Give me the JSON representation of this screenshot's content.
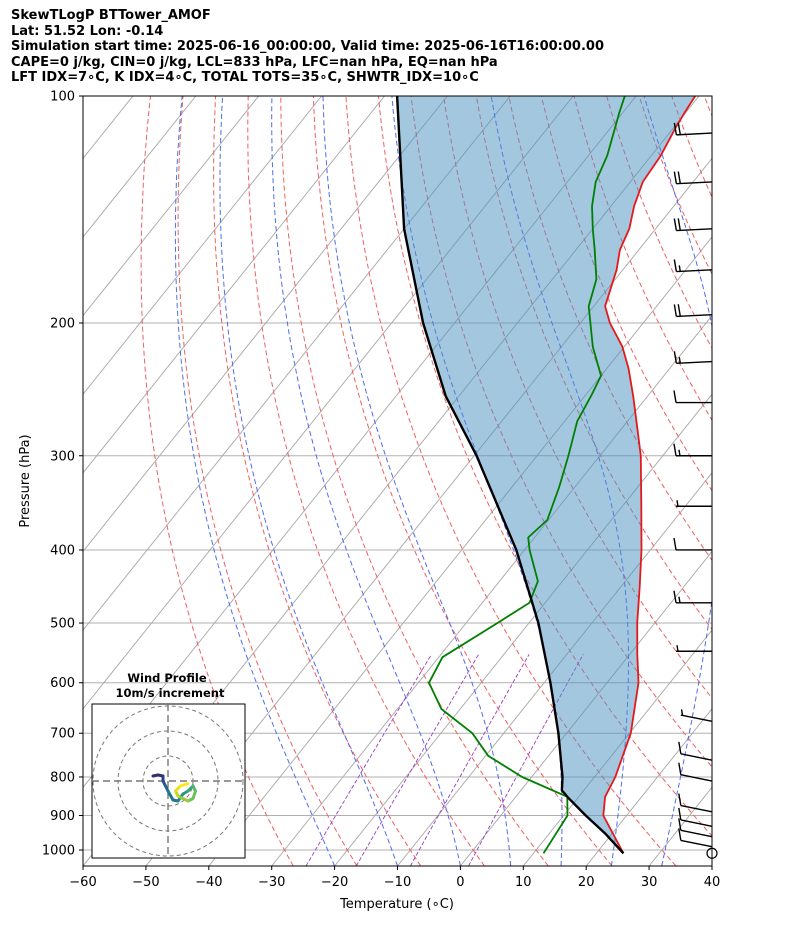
{
  "header": {
    "line1": "SkewTLogP BTTower_AMOF",
    "line2": "Lat: 51.52   Lon: -0.14",
    "line3": "Simulation start time: 2025-06-16_00:00:00, Valid time: 2025-06-16T16:00:00.00",
    "line4": "CAPE=0 j/kg, CIN=0 j/kg, LCL=833 hPa, LFC=nan hPa, EQ=nan hPa",
    "line5": "LFT IDX=7∘C, K IDX=4∘C, TOTAL TOTS=35∘C, SHWTR_IDX=10∘C"
  },
  "chart_data": {
    "type": "line",
    "subtype": "skew-t log-p",
    "xlabel": "Temperature (∘C)",
    "ylabel": "Pressure (hPa)",
    "xlim": [
      -60,
      40
    ],
    "ylim": [
      1050,
      100
    ],
    "y_scale": "log",
    "x_ticks": [
      "−60",
      "−50",
      "−40",
      "−30",
      "−20",
      "−10",
      "0",
      "10",
      "20",
      "30",
      "40"
    ],
    "y_ticks": [
      "100",
      "200",
      "300",
      "400",
      "500",
      "600",
      "700",
      "800",
      "900",
      "1000"
    ],
    "grid": true,
    "series": [
      {
        "role": "temperature",
        "color": "#e31a1c",
        "points": [
          [
            1010,
            24.3
          ],
          [
            900,
            16.3
          ],
          [
            850,
            14.2
          ],
          [
            800,
            13.3
          ],
          [
            700,
            10.2
          ],
          [
            600,
            5.0
          ],
          [
            550,
            1.2
          ],
          [
            500,
            -2.8
          ],
          [
            450,
            -6.8
          ],
          [
            400,
            -11.4
          ],
          [
            350,
            -17.0
          ],
          [
            300,
            -23.5
          ],
          [
            275,
            -27.7
          ],
          [
            250,
            -32.3
          ],
          [
            230,
            -36.5
          ],
          [
            215,
            -40.3
          ],
          [
            200,
            -45.3
          ],
          [
            190,
            -48.2
          ],
          [
            170,
            -51.0
          ],
          [
            160,
            -53.0
          ],
          [
            150,
            -54.2
          ],
          [
            140,
            -56.3
          ],
          [
            130,
            -58.0
          ],
          [
            120,
            -58.5
          ],
          [
            110,
            -59.7
          ],
          [
            105,
            -60.2
          ],
          [
            100,
            -60.6
          ]
        ]
      },
      {
        "role": "dewpoint",
        "color": "#008000",
        "points": [
          [
            1010,
            11.6
          ],
          [
            900,
            10.6
          ],
          [
            850,
            8.2
          ],
          [
            800,
            -1.5
          ],
          [
            750,
            -9.6
          ],
          [
            700,
            -15.0
          ],
          [
            650,
            -23.0
          ],
          [
            600,
            -28.3
          ],
          [
            555,
            -29.4
          ],
          [
            500,
            -25.0
          ],
          [
            470,
            -22.5
          ],
          [
            440,
            -23.9
          ],
          [
            400,
            -29.2
          ],
          [
            385,
            -31.0
          ],
          [
            365,
            -30.2
          ],
          [
            330,
            -32.5
          ],
          [
            300,
            -35.0
          ],
          [
            270,
            -38.0
          ],
          [
            250,
            -39.0
          ],
          [
            235,
            -40.0
          ],
          [
            215,
            -45.0
          ],
          [
            190,
            -50.8
          ],
          [
            175,
            -53.0
          ],
          [
            160,
            -57.0
          ],
          [
            150,
            -60.0
          ],
          [
            140,
            -63.0
          ],
          [
            130,
            -65.5
          ],
          [
            120,
            -67.0
          ],
          [
            105,
            -70.6
          ],
          [
            100,
            -71.8
          ]
        ]
      },
      {
        "role": "parcel profile",
        "color": "#000000",
        "points": [
          [
            1010,
            24.3
          ],
          [
            950,
            18.8
          ],
          [
            900,
            13.5
          ],
          [
            850,
            8.2
          ],
          [
            833,
            6.5
          ],
          [
            800,
            4.9
          ],
          [
            700,
            -1.3
          ],
          [
            600,
            -9.0
          ],
          [
            500,
            -18.5
          ],
          [
            400,
            -31.3
          ],
          [
            300,
            -49.6
          ],
          [
            250,
            -62.1
          ],
          [
            200,
            -75.0
          ],
          [
            150,
            -90.0
          ],
          [
            100,
            -108.0
          ]
        ]
      }
    ],
    "shaded_area": {
      "label": "CIN region between parcel and environment",
      "color": "#4a90c2"
    },
    "wind_barbs": [
      {
        "p": 1010,
        "speed_kt": 0
      },
      {
        "p": 990,
        "speed_kt": 10
      },
      {
        "p": 960,
        "speed_kt": 10
      },
      {
        "p": 930,
        "speed_kt": 10
      },
      {
        "p": 890,
        "speed_kt": 10
      },
      {
        "p": 810,
        "speed_kt": 10
      },
      {
        "p": 760,
        "speed_kt": 10
      },
      {
        "p": 675,
        "speed_kt": 5
      },
      {
        "p": 545,
        "speed_kt": 5
      },
      {
        "p": 470,
        "speed_kt": 15
      },
      {
        "p": 400,
        "speed_kt": 10
      },
      {
        "p": 350,
        "speed_kt": 5
      },
      {
        "p": 300,
        "speed_kt": 15
      },
      {
        "p": 255,
        "speed_kt": 10
      },
      {
        "p": 225,
        "speed_kt": 15
      },
      {
        "p": 195,
        "speed_kt": 20
      },
      {
        "p": 170,
        "speed_kt": 15
      },
      {
        "p": 150,
        "speed_kt": 20
      },
      {
        "p": 130,
        "speed_kt": 20
      },
      {
        "p": 112,
        "speed_kt": 20
      }
    ],
    "hodograph": {
      "title": "Wind Profile",
      "subtitle": "10m/s increment",
      "points": [
        [
          -3,
          1
        ],
        [
          -2,
          1.2
        ],
        [
          -1,
          1
        ],
        [
          -1,
          0
        ],
        [
          -0.5,
          -1
        ],
        [
          0,
          -2
        ],
        [
          1,
          -3.8
        ],
        [
          2,
          -4
        ],
        [
          3,
          -2.6
        ],
        [
          4,
          -2
        ],
        [
          5,
          -1
        ],
        [
          5.5,
          -2
        ],
        [
          5,
          -3.5
        ],
        [
          4,
          -4
        ],
        [
          2,
          -3
        ],
        [
          1.5,
          -2
        ],
        [
          2.5,
          -1
        ],
        [
          4,
          -0.5
        ]
      ]
    }
  }
}
